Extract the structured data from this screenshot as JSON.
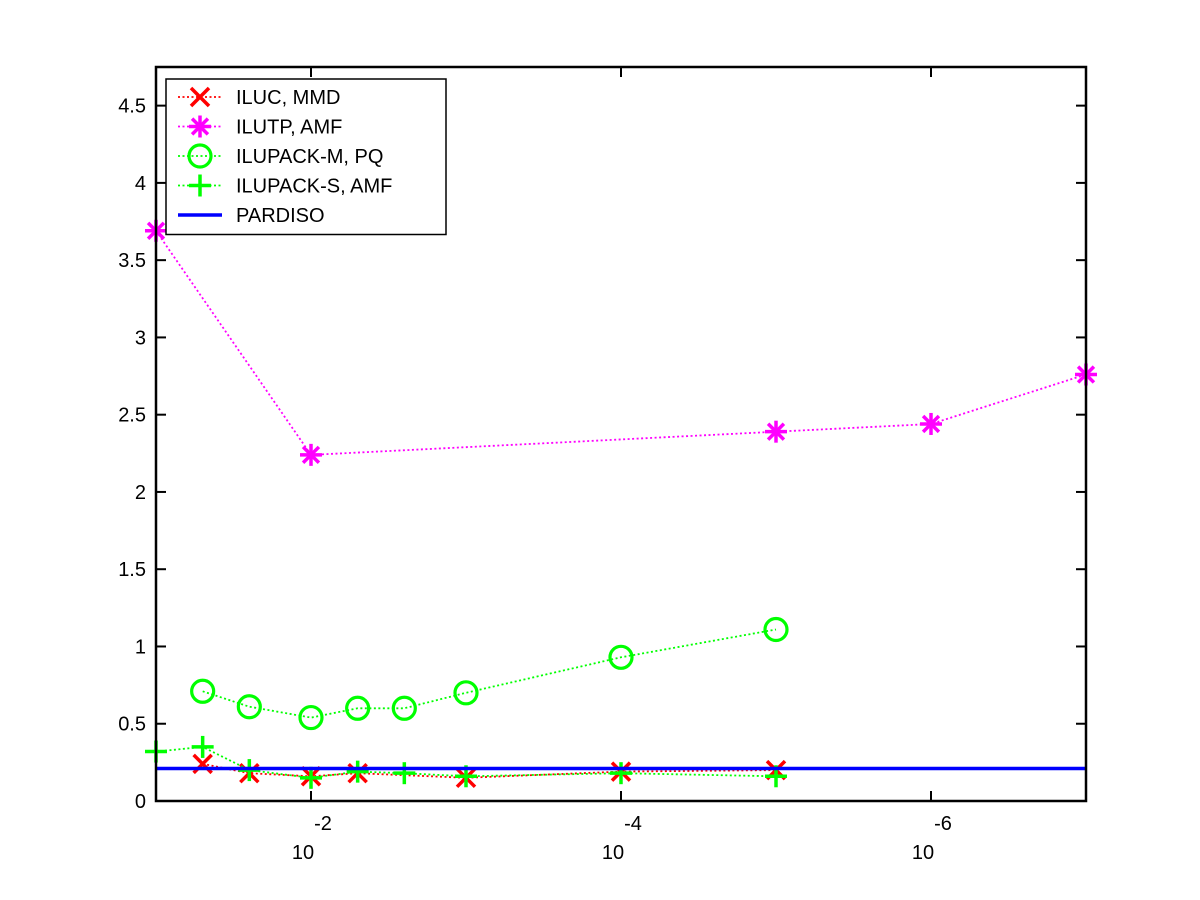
{
  "chart_data": {
    "type": "line",
    "title": "",
    "xlabel": "",
    "ylabel": "",
    "xscale": "log-reversed",
    "xlim": [
      0.1,
      1e-07
    ],
    "ylim": [
      0,
      4.75
    ],
    "x_ticks": [
      {
        "value": 0.01,
        "base": "10",
        "exp": "-2"
      },
      {
        "value": 0.0001,
        "base": "10",
        "exp": "-4"
      },
      {
        "value": 1e-06,
        "base": "10",
        "exp": "-6"
      }
    ],
    "y_ticks": [
      {
        "value": 0,
        "label": "0"
      },
      {
        "value": 0.5,
        "label": "0.5"
      },
      {
        "value": 1,
        "label": "1"
      },
      {
        "value": 1.5,
        "label": "1.5"
      },
      {
        "value": 2,
        "label": "2"
      },
      {
        "value": 2.5,
        "label": "2.5"
      },
      {
        "value": 3,
        "label": "3"
      },
      {
        "value": 3.5,
        "label": "3.5"
      },
      {
        "value": 4,
        "label": "4"
      },
      {
        "value": 4.5,
        "label": "4.5"
      }
    ],
    "grid": false,
    "legend_position": "top-left",
    "series": [
      {
        "name": "ILUC, MMD",
        "color": "#ff0000",
        "marker": "x",
        "line": "dotted",
        "x": [
          0.05,
          0.025,
          0.01,
          0.005,
          0.001,
          0.0001,
          1e-05
        ],
        "y": [
          0.24,
          0.18,
          0.16,
          0.18,
          0.15,
          0.19,
          0.2
        ]
      },
      {
        "name": "ILUTP, AMF",
        "color": "#ff00ff",
        "marker": "asterisk",
        "line": "dotted",
        "x": [
          0.1,
          0.01,
          1e-05,
          1e-06,
          1e-07
        ],
        "y": [
          3.69,
          2.24,
          2.39,
          2.44,
          2.76
        ]
      },
      {
        "name": "ILUPACK-M, PQ",
        "color": "#00ff00",
        "marker": "circle",
        "line": "dotted",
        "x": [
          0.05,
          0.025,
          0.01,
          0.005,
          0.0025,
          0.001,
          0.0001,
          1e-05
        ],
        "y": [
          0.71,
          0.61,
          0.54,
          0.6,
          0.6,
          0.7,
          0.93,
          1.11
        ]
      },
      {
        "name": "ILUPACK-S, AMF",
        "color": "#00ff00",
        "marker": "plus",
        "line": "dotted",
        "x": [
          0.1,
          0.05,
          0.025,
          0.01,
          0.005,
          0.0025,
          0.001,
          0.0001,
          1e-05
        ],
        "y": [
          0.32,
          0.35,
          0.2,
          0.15,
          0.19,
          0.18,
          0.16,
          0.18,
          0.16
        ]
      },
      {
        "name": "PARDISO",
        "color": "#0000ff",
        "marker": "none",
        "line": "solid",
        "x": [
          0.1,
          1e-07
        ],
        "y": [
          0.21,
          0.21
        ]
      }
    ]
  }
}
